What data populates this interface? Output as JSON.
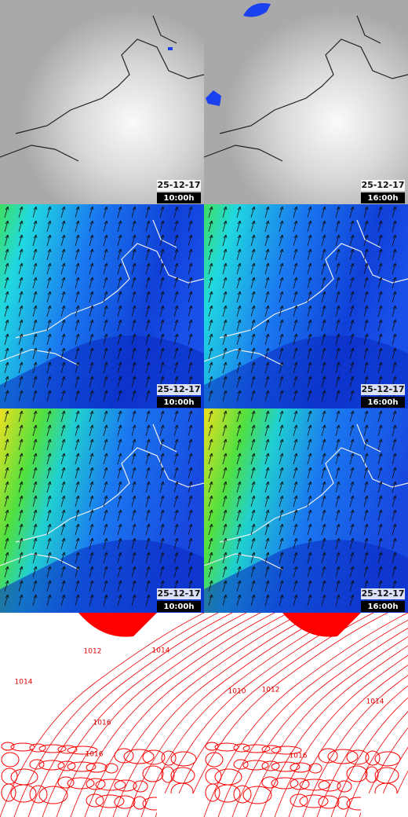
{
  "panels": [
    {
      "date": "25-12-17",
      "time": "10:00h"
    },
    {
      "date": "25-12-17",
      "time": "16:00h"
    },
    {
      "date": "25-12-17",
      "time": "10:00h"
    },
    {
      "date": "25-12-17",
      "time": "16:00h"
    },
    {
      "date": "25-12-17",
      "time": "10:00h"
    },
    {
      "date": "25-12-17",
      "time": "16:00h"
    }
  ],
  "contour_labels": [
    [
      "1012",
      "1014",
      "1014",
      "1016",
      "1016"
    ],
    [
      "1010",
      "1012",
      "1014",
      "1016"
    ]
  ]
}
